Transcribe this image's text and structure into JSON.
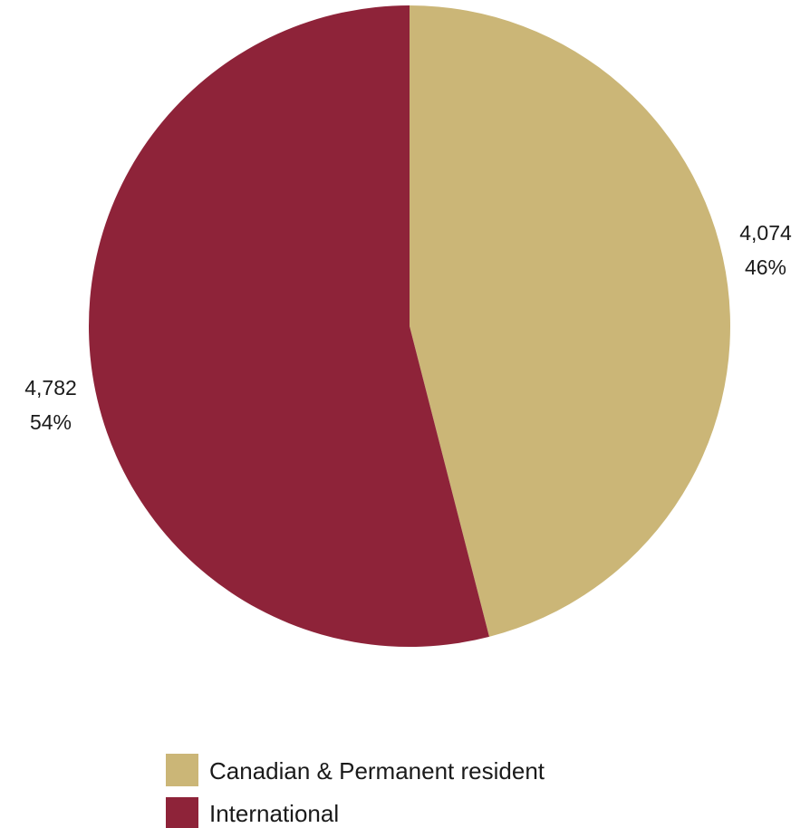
{
  "chart_data": {
    "type": "pie",
    "start_angle_deg": 0,
    "direction": "clockwise",
    "legend_position": "bottom",
    "slices": [
      {
        "label": "Canadian & Permanent resident",
        "value": 4074,
        "value_text": "4,074",
        "percent_text": "46%",
        "color": "#CBB677"
      },
      {
        "label": "International",
        "value": 4782,
        "value_text": "4,782",
        "percent_text": "54%",
        "color": "#8E2339"
      }
    ]
  }
}
